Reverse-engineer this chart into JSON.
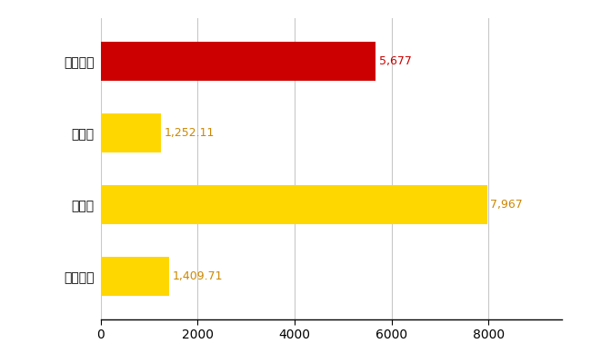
{
  "categories": [
    "全国平均",
    "県最大",
    "県平均",
    "伊勢崎市"
  ],
  "values": [
    1409.71,
    7967,
    1252.11,
    5677
  ],
  "bar_colors": [
    "#FFD700",
    "#FFD700",
    "#FFD700",
    "#CC0000"
  ],
  "labels": [
    "1,409.71",
    "7,967",
    "1,252.11",
    "5,677"
  ],
  "xlim": [
    0,
    9500
  ],
  "xticks": [
    0,
    2000,
    4000,
    6000,
    8000
  ],
  "bar_height": 0.55,
  "background_color": "#FFFFFF",
  "grid_color": "#C8C8C8",
  "label_color_default": "#CC8800",
  "label_color_red": "#CC0000",
  "tick_fontsize": 10,
  "label_fontsize": 9,
  "ytick_fontsize": 10
}
